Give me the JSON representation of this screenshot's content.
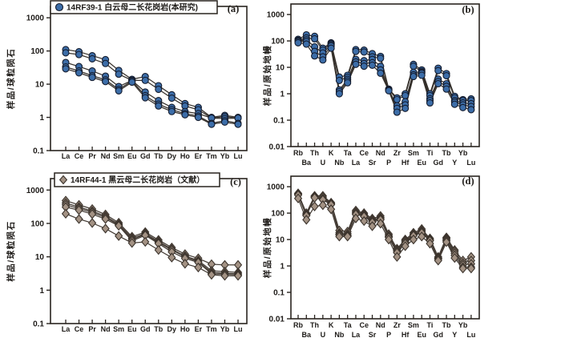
{
  "chart_data": [
    {
      "id": "a",
      "panel_label": "(a)",
      "type": "line",
      "legend": "14RF39-1 白云母二长花岗岩(本研究)",
      "legend_position": "top-left",
      "ylabel": "样品/球粒陨石",
      "marker": "circle",
      "marker_color": "#3c6da8",
      "marker_outline": "#141c2e",
      "line_color": "#35302b",
      "frame_color": "#29241f",
      "grid": false,
      "yticks": [
        1000,
        100,
        10,
        1,
        0.1
      ],
      "ylim": [
        0.1,
        2200
      ],
      "categories": [
        "La",
        "Ce",
        "Pr",
        "Nd",
        "Sm",
        "Eu",
        "Gd",
        "Tb",
        "Dy",
        "Ho",
        "Er",
        "Tm",
        "Yb",
        "Lu"
      ],
      "series": [
        [
          110,
          95,
          72,
          55,
          26,
          14,
          17,
          9,
          4.8,
          2.6,
          2.0,
          1.0,
          1.15,
          1.0
        ],
        [
          88,
          78,
          58,
          42,
          20,
          13,
          13,
          7,
          3.8,
          2.2,
          1.7,
          0.95,
          1.05,
          0.95
        ],
        [
          45,
          34,
          25,
          17.5,
          8.5,
          13,
          5.8,
          3.2,
          2.0,
          1.5,
          1.3,
          0.95,
          0.92,
          0.95
        ],
        [
          33,
          25,
          18,
          13.5,
          7.0,
          12.5,
          4.5,
          2.5,
          1.7,
          1.3,
          1.1,
          0.66,
          0.8,
          0.66
        ],
        [
          29,
          22,
          16,
          12,
          6.3,
          11.5,
          3.9,
          2.2,
          1.5,
          1.2,
          1.0,
          0.62,
          0.72,
          0.62
        ]
      ]
    },
    {
      "id": "b",
      "panel_label": "(b)",
      "type": "line",
      "ylabel": "样品/原始地幔",
      "marker": "circle",
      "marker_color": "#3c6da8",
      "marker_outline": "#141c2e",
      "line_color": "#35302b",
      "frame_color": "#29241f",
      "grid": false,
      "yticks": [
        1000,
        100,
        10,
        1,
        0.1,
        0.01
      ],
      "ylim": [
        0.01,
        2500
      ],
      "categories": [
        "Rb",
        "Ba",
        "Th",
        "U",
        "K",
        "Nb",
        "Ta",
        "La",
        "Ce",
        "Sr",
        "Nd",
        "P",
        "Zr",
        "Hf",
        "Sm",
        "Eu",
        "Ti",
        "Gd",
        "Tb",
        "Y",
        "Yb",
        "Lu"
      ],
      "series": [
        [
          115,
          170,
          150,
          53,
          85,
          4.3,
          5.0,
          47,
          45,
          33,
          26,
          1.5,
          0.7,
          1.0,
          13,
          8,
          1.0,
          9.3,
          5.8,
          0.8,
          0.6,
          0.64
        ],
        [
          105,
          130,
          120,
          45,
          78,
          3.2,
          4.2,
          40,
          38,
          25,
          22,
          1.45,
          0.6,
          0.85,
          11,
          7,
          0.85,
          7.5,
          4.8,
          0.7,
          0.55,
          0.55
        ],
        [
          100,
          110,
          60,
          35,
          72,
          1.4,
          3.5,
          20,
          18,
          20,
          11,
          1.4,
          0.35,
          0.5,
          6.5,
          6.5,
          0.65,
          3.6,
          2.4,
          0.55,
          0.45,
          0.42
        ],
        [
          95,
          95,
          40,
          25,
          65,
          1.2,
          3.0,
          16,
          14,
          15,
          8,
          1.35,
          0.28,
          0.38,
          5.2,
          6.0,
          0.55,
          2.9,
          1.9,
          0.48,
          0.38,
          0.33
        ],
        [
          85,
          76,
          27,
          19,
          53,
          1.0,
          2.6,
          13,
          11,
          12,
          6,
          1.3,
          0.2,
          0.28,
          4.5,
          5.0,
          0.45,
          2.4,
          1.5,
          0.4,
          0.3,
          0.25
        ]
      ]
    },
    {
      "id": "c",
      "panel_label": "(c)",
      "type": "line",
      "legend": "14RF44-1 黑云母二长花岗岩（文献）",
      "legend_position": "top-left",
      "ylabel": "样品/球粒陨石",
      "marker": "diamond",
      "marker_color": "#a39284",
      "marker_outline": "#3b332c",
      "line_color": "#443c35",
      "frame_color": "#29241f",
      "grid": false,
      "yticks": [
        1000,
        100,
        10,
        1,
        0.1
      ],
      "ylim": [
        0.1,
        2200
      ],
      "categories": [
        "La",
        "Ce",
        "Pr",
        "Nd",
        "Sm",
        "Eu",
        "Gd",
        "Tb",
        "Dy",
        "Ho",
        "Er",
        "Tm",
        "Yb",
        "Lu"
      ],
      "series": [
        [
          480,
          360,
          270,
          185,
          105,
          40,
          55,
          32,
          19,
          12,
          9.0,
          6.0,
          5.7,
          5.7
        ],
        [
          410,
          310,
          235,
          165,
          95,
          36,
          50,
          29,
          17,
          10.5,
          7.8,
          3.8,
          3.6,
          3.4
        ],
        [
          360,
          280,
          215,
          150,
          90,
          33,
          47,
          27,
          16,
          10,
          7.2,
          3.4,
          3.2,
          3.1
        ],
        [
          310,
          250,
          190,
          135,
          85,
          30,
          44,
          25,
          14,
          9,
          6.8,
          3.1,
          3.0,
          2.9
        ],
        [
          195,
          135,
          103,
          70,
          42,
          26,
          28,
          16,
          9.5,
          6.2,
          4.8,
          2.9,
          2.7,
          2.7
        ]
      ]
    },
    {
      "id": "d",
      "panel_label": "(d)",
      "type": "line",
      "ylabel": "样品/原始地幔",
      "marker": "diamond",
      "marker_color": "#a39284",
      "marker_outline": "#3b332c",
      "line_color": "#443c35",
      "frame_color": "#29241f",
      "grid": false,
      "yticks": [
        1000,
        100,
        10,
        1,
        0.1,
        0.01
      ],
      "ylim": [
        0.01,
        2500
      ],
      "categories": [
        "Rb",
        "Ba",
        "Th",
        "U",
        "K",
        "Nb",
        "Ta",
        "La",
        "Ce",
        "Sr",
        "Nd",
        "P",
        "Zr",
        "Hf",
        "Sm",
        "Eu",
        "Ti",
        "Gd",
        "Tb",
        "Y",
        "Yb",
        "Lu"
      ],
      "series": [
        [
          560,
          100,
          450,
          450,
          250,
          22,
          20,
          125,
          100,
          62,
          78,
          16,
          4.5,
          10,
          18,
          25,
          11,
          2.2,
          12,
          4.0,
          1.6,
          2.2
        ],
        [
          540,
          90,
          420,
          400,
          230,
          18,
          17,
          110,
          90,
          55,
          68,
          14,
          4.0,
          9,
          16,
          22,
          10,
          2.0,
          11,
          3.5,
          1.3,
          1.6
        ],
        [
          520,
          85,
          400,
          350,
          220,
          16,
          15,
          100,
          82,
          50,
          62,
          13,
          3.6,
          8,
          15,
          20,
          9.5,
          1.9,
          10,
          3.0,
          1.1,
          1.2
        ],
        [
          480,
          80,
          380,
          320,
          210,
          15,
          14,
          90,
          75,
          45,
          56,
          12,
          3.2,
          7,
          14,
          18,
          9.0,
          1.8,
          9,
          2.5,
          0.9,
          0.9
        ],
        [
          360,
          56,
          180,
          200,
          140,
          13,
          13,
          63,
          50,
          32,
          40,
          10,
          2.2,
          5.6,
          10,
          13,
          7.0,
          1.6,
          8,
          2.0,
          0.8,
          0.8
        ]
      ]
    }
  ]
}
